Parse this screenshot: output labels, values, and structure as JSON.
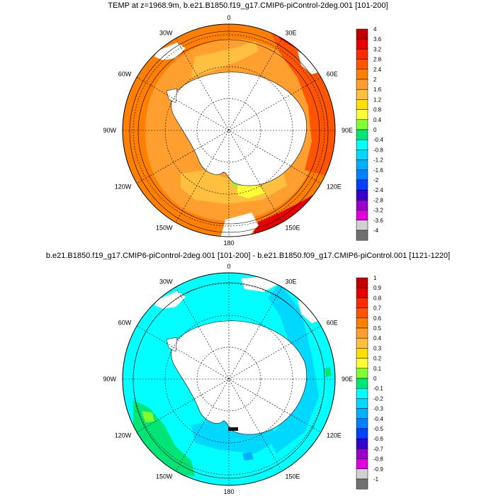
{
  "panels": [
    {
      "title": "TEMP at z=1968.9m, b.e21.B1850.f19_g17.CMIP6-piControl-2deg.001 [101-200]",
      "lon_labels": [
        "0",
        "30E",
        "60E",
        "90E",
        "120E",
        "150E",
        "180",
        "150W",
        "120W",
        "90W",
        "60W",
        "30W"
      ],
      "colorbar": {
        "labels": [
          "4",
          "3.6",
          "3.2",
          "2.8",
          "2.4",
          "2",
          "1.6",
          "1.2",
          "0.8",
          "0.4",
          "0",
          "-0.4",
          "-0.8",
          "-1.2",
          "-1.6",
          "-2",
          "-2.4",
          "-2.8",
          "-3.2",
          "-3.6",
          "-4"
        ],
        "colors": [
          "#c00000",
          "#e60000",
          "#ff2a00",
          "#ff5500",
          "#ff7f00",
          "#ff9f30",
          "#ffbf3f",
          "#ffdf00",
          "#ffff33",
          "#80ff33",
          "#00e676",
          "#00ffff",
          "#00d8ff",
          "#00b0ff",
          "#0080ff",
          "#0040ff",
          "#3300cc",
          "#9900cc",
          "#e000e0",
          "#d0d0d0",
          "#707070"
        ]
      },
      "ocean_color": "#ff9f30"
    },
    {
      "title": "b.e21.B1850.f19_g17.CMIP6-piControl-2deg.001 [101-200] - b.e21.B1850.f09_g17.CMIP6-piControl.001 [1121-1220]",
      "lon_labels": [
        "0",
        "30E",
        "60E",
        "90E",
        "120E",
        "150E",
        "180",
        "150W",
        "120W",
        "90W",
        "60W",
        "30W"
      ],
      "colorbar": {
        "labels": [
          "1",
          "0.9",
          "0.8",
          "0.7",
          "0.6",
          "0.5",
          "0.4",
          "0.3",
          "0.2",
          "0.1",
          "0",
          "-0.1",
          "-0.2",
          "-0.3",
          "-0.4",
          "-0.5",
          "-0.6",
          "-0.7",
          "-0.8",
          "-0.9",
          "-1"
        ],
        "colors": [
          "#c00000",
          "#e60000",
          "#ff2a00",
          "#ff5500",
          "#ff7f00",
          "#ff9f30",
          "#ffbf3f",
          "#ffdf00",
          "#ffff33",
          "#80ff33",
          "#00e676",
          "#00ffff",
          "#00d8ff",
          "#00b0ff",
          "#0080ff",
          "#0040ff",
          "#3300cc",
          "#9900cc",
          "#e000e0",
          "#d0d0d0",
          "#707070"
        ]
      },
      "ocean_color": "#00ffff"
    }
  ]
}
